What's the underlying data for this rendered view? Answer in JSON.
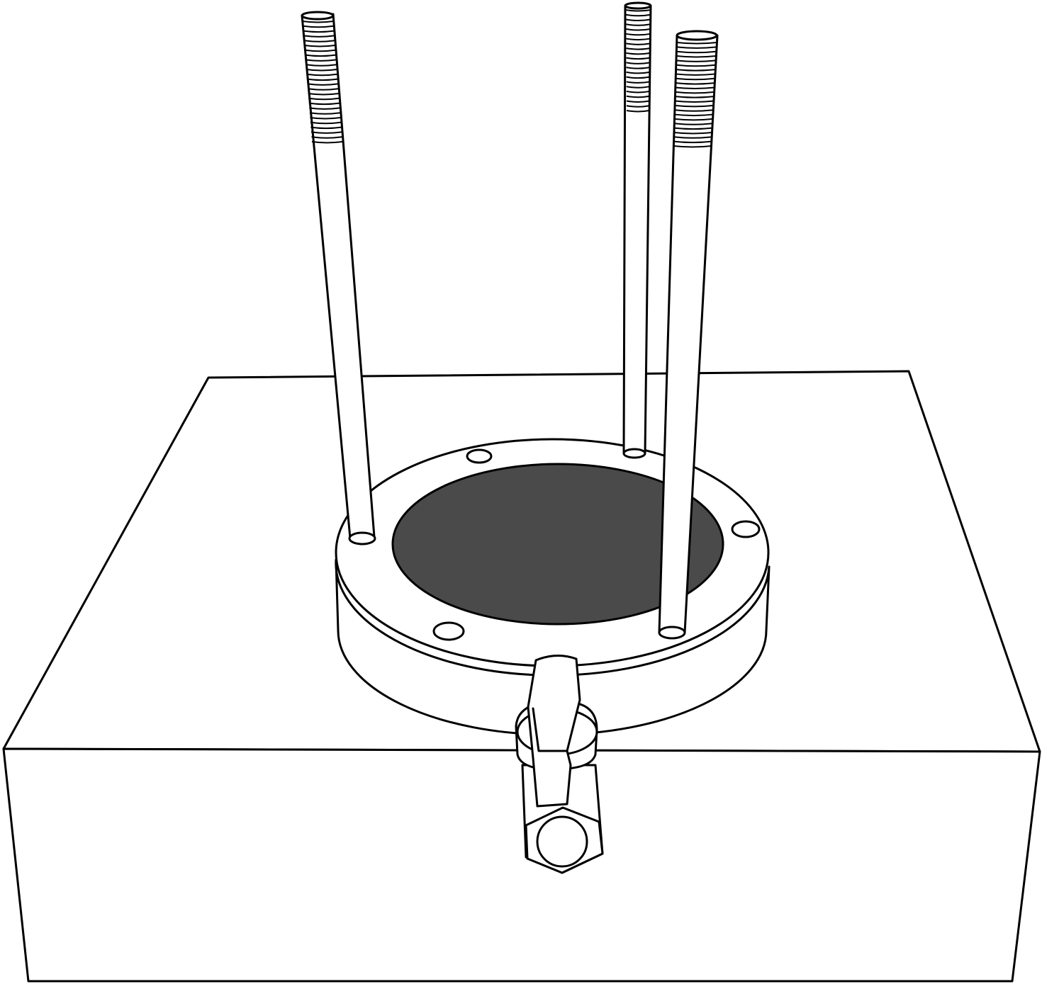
{
  "colors": {
    "background": "#ffffff",
    "line": "#000000",
    "fill": "#ffffff",
    "opening": "#4a4a4a"
  }
}
